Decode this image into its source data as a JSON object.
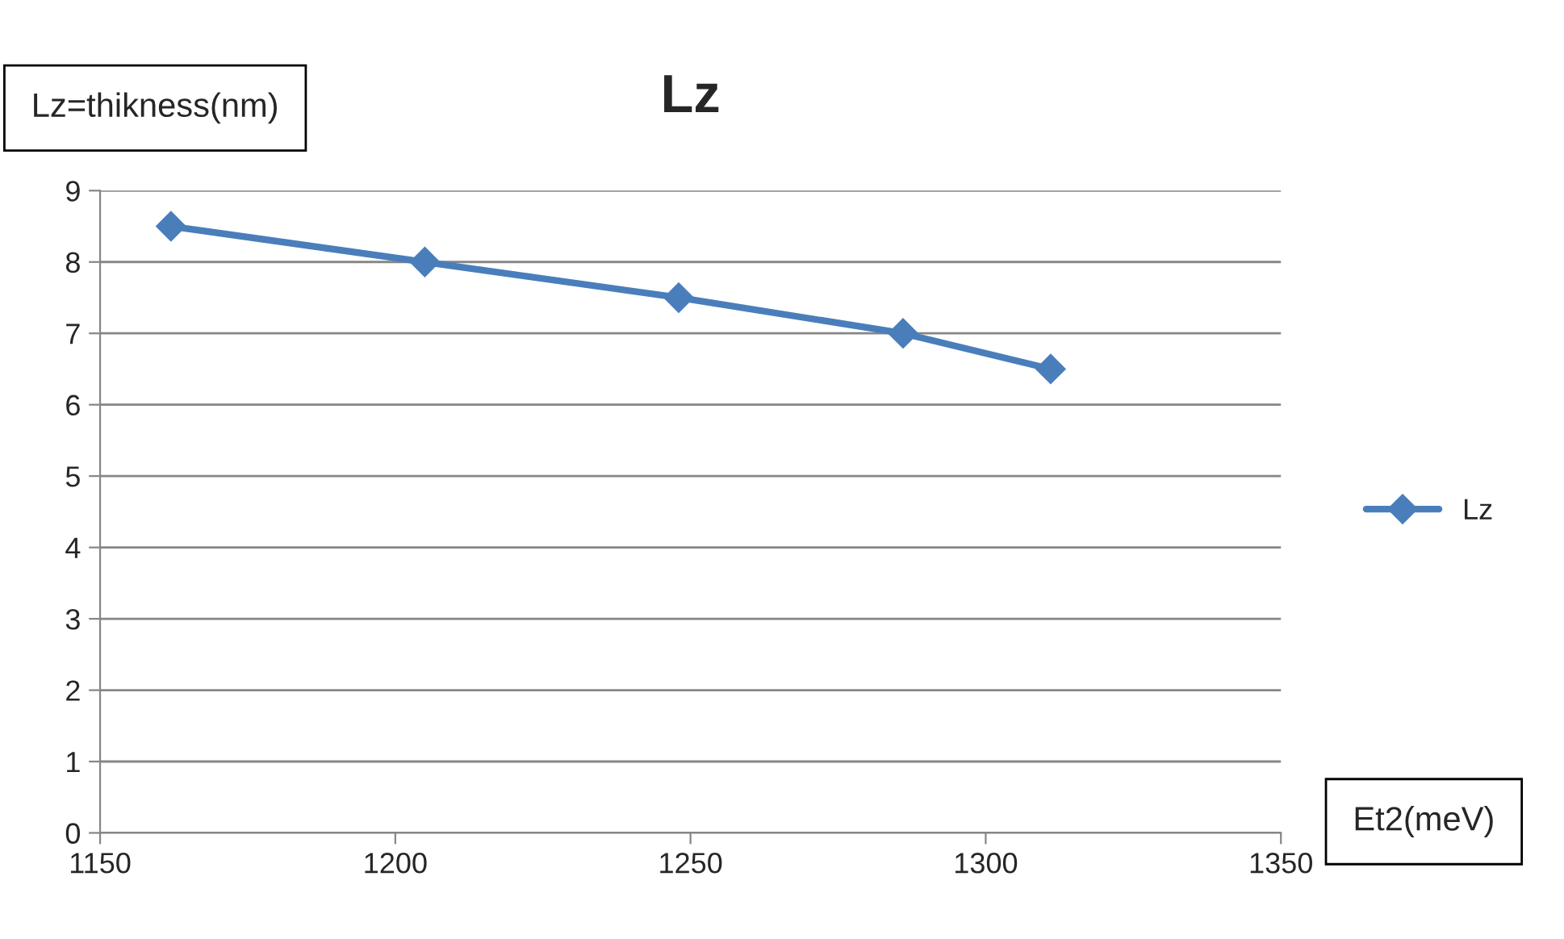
{
  "chart_data": {
    "type": "line",
    "title": "Lz",
    "xlabel": "Et2(meV)",
    "ylabel": "Lz=thikness(nm)",
    "x": [
      1162,
      1205,
      1248,
      1286,
      1311
    ],
    "series": [
      {
        "name": "Lz",
        "color": "#4a7ebb",
        "values": [
          8.5,
          8,
          7.5,
          7,
          6.5
        ]
      }
    ],
    "xlim": [
      1150,
      1350
    ],
    "xticks": [
      1150,
      1200,
      1250,
      1300,
      1350
    ],
    "ylim": [
      0,
      9
    ],
    "yticks": [
      0,
      1,
      2,
      3,
      4,
      5,
      6,
      7,
      8,
      9
    ],
    "grid": "y",
    "legend": "right",
    "marker": "diamond",
    "line_style": "solid"
  }
}
